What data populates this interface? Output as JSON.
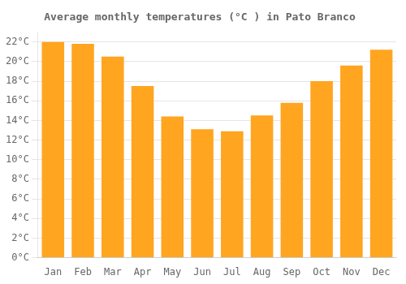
{
  "chart_data": {
    "type": "bar",
    "title": "Average monthly temperatures (°C ) in Pato Branco",
    "categories": [
      "Jan",
      "Feb",
      "Mar",
      "Apr",
      "May",
      "Jun",
      "Jul",
      "Aug",
      "Sep",
      "Oct",
      "Nov",
      "Dec"
    ],
    "values": [
      22.0,
      21.8,
      20.5,
      17.5,
      14.4,
      13.1,
      12.9,
      14.5,
      15.8,
      18.0,
      19.6,
      21.2
    ],
    "color": "#FFA520",
    "ylim": [
      0,
      23
    ],
    "yticks": [
      {
        "value": 0,
        "label": "0°C"
      },
      {
        "value": 2,
        "label": "2°C"
      },
      {
        "value": 4,
        "label": "4°C"
      },
      {
        "value": 6,
        "label": "6°C"
      },
      {
        "value": 8,
        "label": "8°C"
      },
      {
        "value": 10,
        "label": "10°C"
      },
      {
        "value": 12,
        "label": "12°C"
      },
      {
        "value": 14,
        "label": "14°C"
      },
      {
        "value": 16,
        "label": "16°C"
      },
      {
        "value": 18,
        "label": "18°C"
      },
      {
        "value": 20,
        "label": "20°C"
      },
      {
        "value": 22,
        "label": "22°C"
      }
    ],
    "grid": true
  }
}
